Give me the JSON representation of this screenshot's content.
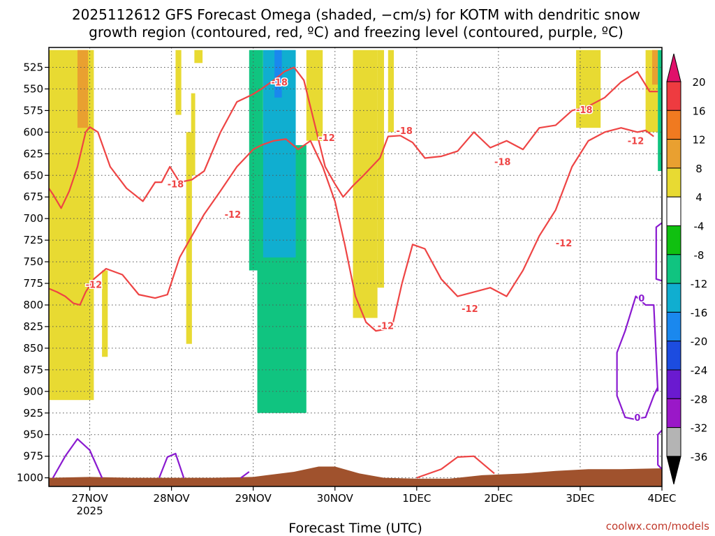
{
  "chart_data": {
    "type": "heatmap",
    "title_line1": "2025112612 GFS Forecast Omega (shaded, −cm/s) for KOTM with dendritic snow",
    "title_line2": "growth region (contoured, red, ºC) and freezing level (contoured, purple, ºC)",
    "xlabel": "Forecast Time (UTC)",
    "credit": "coolwx.com/models",
    "x_range": [
      0,
      7.5
    ],
    "x_ticks": [
      {
        "x": 0.5,
        "label": "27NOV",
        "sub": "2025"
      },
      {
        "x": 1.5,
        "label": "28NOV",
        "sub": ""
      },
      {
        "x": 2.5,
        "label": "29NOV",
        "sub": ""
      },
      {
        "x": 3.5,
        "label": "30NOV",
        "sub": ""
      },
      {
        "x": 4.5,
        "label": "1DEC",
        "sub": ""
      },
      {
        "x": 5.5,
        "label": "2DEC",
        "sub": ""
      },
      {
        "x": 6.5,
        "label": "3DEC",
        "sub": ""
      },
      {
        "x": 7.5,
        "label": "4DEC",
        "sub": ""
      }
    ],
    "y_range": [
      1010,
      502
    ],
    "y_ticks": [
      525,
      550,
      575,
      600,
      625,
      650,
      675,
      700,
      725,
      750,
      775,
      800,
      825,
      850,
      875,
      900,
      925,
      950,
      975,
      1000
    ],
    "colorbar": {
      "levels": [
        20,
        16,
        12,
        8,
        4,
        -4,
        -8,
        -12,
        -16,
        -20,
        -24,
        -28,
        -32,
        -36
      ],
      "colors": [
        "#ee3b40",
        "#f07a20",
        "#e9a030",
        "#e8da32",
        "#ffffff",
        "#10c010",
        "#10c480",
        "#10aed0",
        "#1a88ee",
        "#1c4ce0",
        "#6a1ad0",
        "#9a18c8",
        "#b4b4b4"
      ],
      "top_color": "#e0106a",
      "bottom_color": "#000000"
    },
    "omega_regions": [
      {
        "value": 4,
        "x0": 0.0,
        "x1": 0.55,
        "p_top": 505,
        "p_bot": 910
      },
      {
        "value": 8,
        "x0": 0.35,
        "x1": 0.48,
        "p_top": 505,
        "p_bot": 595
      },
      {
        "value": 4,
        "x0": 0.65,
        "x1": 0.72,
        "p_top": 760,
        "p_bot": 860
      },
      {
        "value": 4,
        "x0": 1.55,
        "x1": 1.62,
        "p_top": 505,
        "p_bot": 580
      },
      {
        "value": 4,
        "x0": 1.68,
        "x1": 1.75,
        "p_top": 600,
        "p_bot": 845
      },
      {
        "value": 4,
        "x0": 1.78,
        "x1": 1.88,
        "p_top": 505,
        "p_bot": 520
      },
      {
        "value": 4,
        "x0": 1.74,
        "x1": 1.79,
        "p_top": 555,
        "p_bot": 650
      },
      {
        "value": -8,
        "x0": 2.55,
        "x1": 3.15,
        "p_top": 615,
        "p_bot": 925
      },
      {
        "value": -12,
        "x0": 2.62,
        "x1": 3.02,
        "p_top": 505,
        "p_bot": 745
      },
      {
        "value": -16,
        "x0": 2.76,
        "x1": 2.85,
        "p_top": 505,
        "p_bot": 560
      },
      {
        "value": -8,
        "x0": 2.45,
        "x1": 2.62,
        "p_top": 505,
        "p_bot": 760
      },
      {
        "value": 4,
        "x0": 3.15,
        "x1": 3.35,
        "p_top": 505,
        "p_bot": 610
      },
      {
        "value": 4,
        "x0": 3.72,
        "x1": 4.02,
        "p_top": 505,
        "p_bot": 815
      },
      {
        "value": 4,
        "x0": 4.02,
        "x1": 4.1,
        "p_top": 505,
        "p_bot": 780
      },
      {
        "value": 4,
        "x0": 4.15,
        "x1": 4.22,
        "p_top": 505,
        "p_bot": 600
      },
      {
        "value": 4,
        "x0": 6.45,
        "x1": 6.75,
        "p_top": 505,
        "p_bot": 595
      },
      {
        "value": 4,
        "x0": 7.3,
        "x1": 7.45,
        "p_top": 505,
        "p_bot": 600
      },
      {
        "value": 8,
        "x0": 7.38,
        "x1": 7.45,
        "p_top": 505,
        "p_bot": 545
      },
      {
        "value": -8,
        "x0": 7.45,
        "x1": 7.5,
        "p_top": 505,
        "p_bot": 645
      }
    ],
    "terrain": {
      "color": "#a0522d",
      "x": [
        0.0,
        0.5,
        1.0,
        1.5,
        2.0,
        2.5,
        3.0,
        3.3,
        3.5,
        3.8,
        4.1,
        4.5,
        4.9,
        5.3,
        5.8,
        6.2,
        6.6,
        7.0,
        7.5
      ],
      "p_top": [
        1000,
        999,
        1000,
        1000,
        1000,
        999,
        993,
        987,
        987,
        995,
        1000,
        1001,
        1001,
        997,
        995,
        992,
        990,
        990,
        989
      ]
    },
    "red_contours": [
      {
        "label": "-18",
        "x": [
          0.0,
          0.05,
          0.15,
          0.25,
          0.35,
          0.45,
          0.5,
          0.6,
          0.75,
          0.95,
          1.15,
          1.3,
          1.38,
          1.48,
          1.6,
          1.75,
          1.9,
          2.1,
          2.3,
          2.5,
          2.6,
          2.75,
          2.88,
          3.0,
          3.12,
          3.25,
          3.38,
          3.5,
          3.6,
          3.72,
          3.85,
          3.95,
          4.05,
          4.15,
          4.3,
          4.45,
          4.6,
          4.8,
          5.0,
          5.2,
          5.4,
          5.6,
          5.8,
          6.0,
          6.2,
          6.4,
          6.6,
          6.8,
          7.0,
          7.2,
          7.35,
          7.45
        ],
        "p": [
          665,
          672,
          688,
          668,
          640,
          600,
          594,
          600,
          640,
          665,
          680,
          658,
          658,
          640,
          658,
          655,
          645,
          600,
          565,
          556,
          550,
          540,
          530,
          525,
          540,
          590,
          640,
          660,
          675,
          662,
          650,
          640,
          630,
          605,
          604,
          612,
          630,
          628,
          622,
          600,
          618,
          610,
          620,
          595,
          592,
          575,
          570,
          560,
          542,
          530,
          553,
          553
        ],
        "labels": [
          {
            "x": 1.55,
            "p": 660
          },
          {
            "x": 2.82,
            "p": 542
          },
          {
            "x": 4.35,
            "p": 598
          },
          {
            "x": 5.55,
            "p": 634
          },
          {
            "x": 6.55,
            "p": 574
          }
        ]
      },
      {
        "label": "-12",
        "x": [
          0.0,
          0.1,
          0.2,
          0.3,
          0.38,
          0.45,
          0.55,
          0.7,
          0.9,
          1.1,
          1.3,
          1.45,
          1.6,
          1.75,
          1.9,
          2.1,
          2.3,
          2.5,
          2.6,
          2.75,
          2.9,
          3.05,
          3.2,
          3.35,
          3.5,
          3.62,
          3.75,
          3.88,
          4.0,
          4.12,
          4.2,
          4.32,
          4.45,
          4.6,
          4.8,
          5.0,
          5.2,
          5.4,
          5.6,
          5.8,
          6.0,
          6.2,
          6.4,
          6.6,
          6.8,
          7.0,
          7.2,
          7.3,
          7.4
        ],
        "p": [
          781,
          785,
          790,
          798,
          800,
          785,
          770,
          758,
          765,
          788,
          792,
          788,
          745,
          720,
          695,
          668,
          640,
          620,
          615,
          610,
          608,
          620,
          610,
          640,
          680,
          730,
          790,
          820,
          830,
          828,
          825,
          775,
          730,
          735,
          770,
          790,
          785,
          780,
          790,
          760,
          720,
          690,
          640,
          610,
          600,
          595,
          600,
          598,
          605
        ],
        "labels": [
          {
            "x": 0.55,
            "p": 776
          },
          {
            "x": 2.25,
            "p": 695
          },
          {
            "x": 3.4,
            "p": 606
          },
          {
            "x": 4.12,
            "p": 824
          },
          {
            "x": 5.15,
            "p": 804
          },
          {
            "x": 6.3,
            "p": 728
          },
          {
            "x": 7.18,
            "p": 610
          }
        ]
      },
      {
        "label": "",
        "x": [
          4.5,
          4.8,
          5.0,
          5.2,
          5.45
        ],
        "p": [
          1000,
          990,
          976,
          975,
          995
        ],
        "labels": []
      }
    ],
    "purple_contours": [
      {
        "label": "0",
        "x": [
          0.05,
          0.2,
          0.35,
          0.5,
          0.65
        ],
        "p": [
          1000,
          975,
          955,
          968,
          1000
        ],
        "labels": []
      },
      {
        "label": "0",
        "x": [
          1.35,
          1.45,
          1.55,
          1.65
        ],
        "p": [
          1000,
          976,
          972,
          1000
        ],
        "labels": []
      },
      {
        "label": "0",
        "x": [
          2.35,
          2.45
        ],
        "p": [
          1000,
          993
        ],
        "labels": []
      },
      {
        "label": "0",
        "x": [
          7.45,
          7.4,
          7.3,
          7.18,
          7.05,
          6.95,
          6.95,
          7.05,
          7.15,
          7.3,
          7.4,
          7.45
        ],
        "p": [
          900,
          800,
          800,
          790,
          830,
          855,
          905,
          930,
          932,
          930,
          905,
          895
        ],
        "labels": [
          {
            "x": 7.25,
            "p": 792
          },
          {
            "x": 7.2,
            "p": 930
          }
        ]
      },
      {
        "label": "",
        "x": [
          7.5,
          7.43,
          7.43,
          7.5
        ],
        "p": [
          705,
          710,
          770,
          772
        ],
        "labels": []
      },
      {
        "label": "",
        "x": [
          7.5,
          7.45,
          7.45,
          7.5
        ],
        "p": [
          945,
          950,
          985,
          990
        ],
        "labels": []
      }
    ]
  }
}
